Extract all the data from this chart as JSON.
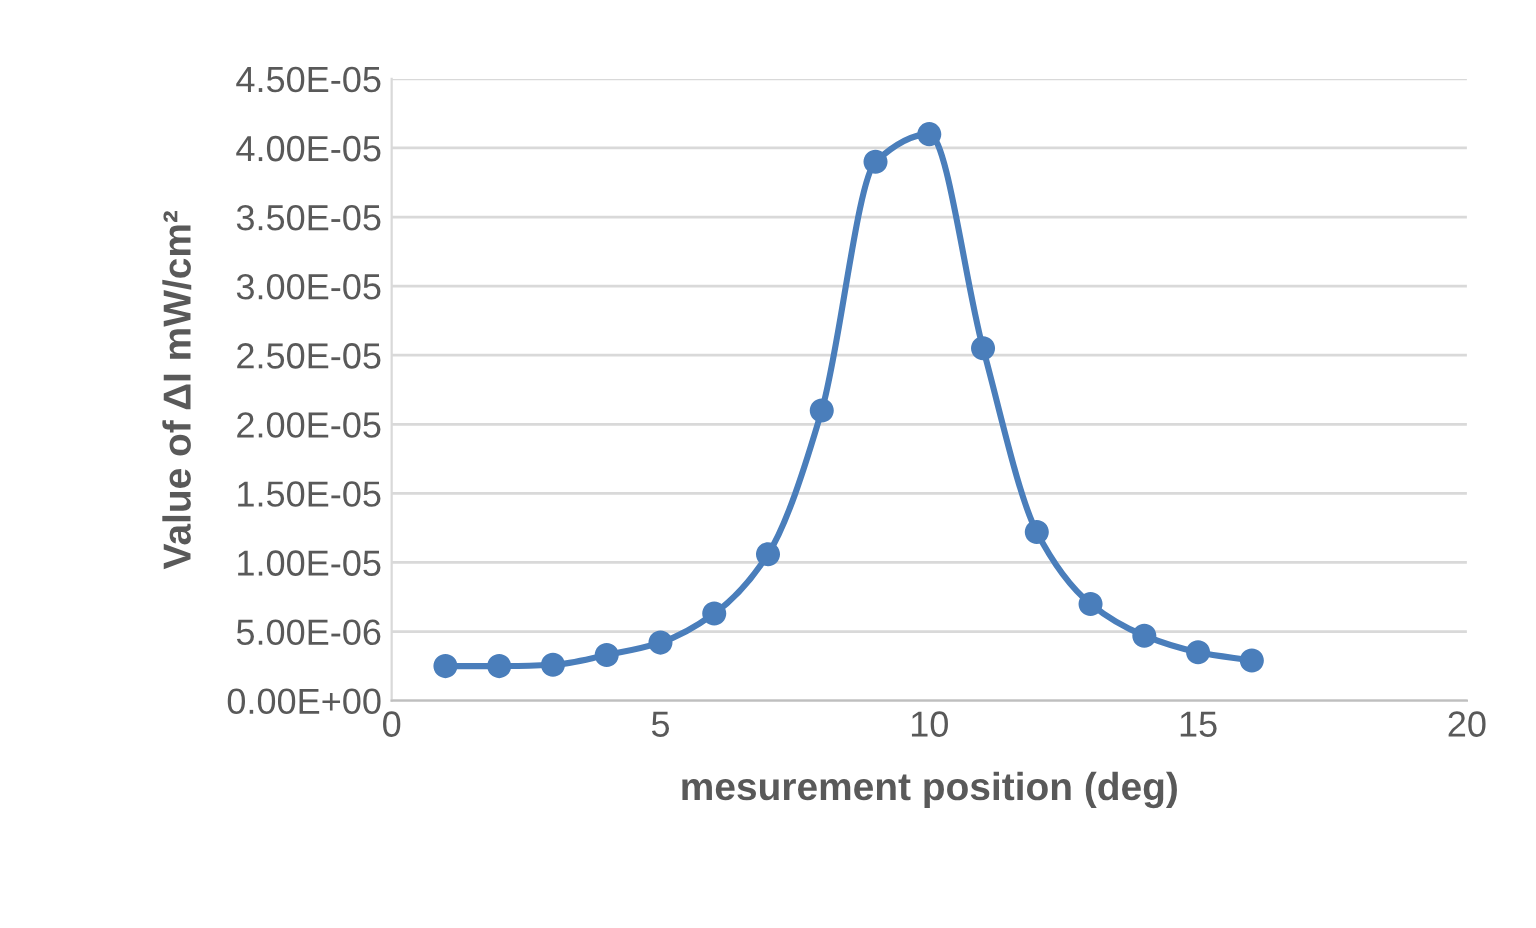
{
  "chart_data": {
    "type": "line",
    "xlabel": "mesurement position (deg)",
    "ylabel": "Value of ΔI mW/cm²",
    "x": [
      1,
      2,
      3,
      4,
      5,
      6,
      7,
      8,
      9,
      10,
      11,
      12,
      13,
      14,
      15,
      16
    ],
    "series": [
      {
        "color": "#4a7ebb",
        "values": [
          2.5e-06,
          2.5e-06,
          2.6e-06,
          3.3e-06,
          4.2e-06,
          6.3e-06,
          1.06e-05,
          2.1e-05,
          3.9e-05,
          4.1e-05,
          2.55e-05,
          1.22e-05,
          7e-06,
          4.7e-06,
          3.5e-06,
          2.9e-06
        ]
      }
    ],
    "xlim": [
      0,
      20
    ],
    "xticks": [
      0,
      5,
      10,
      15,
      20
    ],
    "ylim": [
      0,
      4.5e-05
    ],
    "yticks": [
      {
        "value": 0,
        "label": "0.00E+00"
      },
      {
        "value": 5e-06,
        "label": "5.00E-06"
      },
      {
        "value": 1e-05,
        "label": "1.00E-05"
      },
      {
        "value": 1.5e-05,
        "label": "1.50E-05"
      },
      {
        "value": 2e-05,
        "label": "2.00E-05"
      },
      {
        "value": 2.5e-05,
        "label": "2.50E-05"
      },
      {
        "value": 3e-05,
        "label": "3.00E-05"
      },
      {
        "value": 3.5e-05,
        "label": "3.50E-05"
      },
      {
        "value": 4e-05,
        "label": "4.00E-05"
      },
      {
        "value": 4.5e-05,
        "label": "4.50E-05"
      }
    ],
    "grid": "y",
    "marker": "circle",
    "line_style": "solid",
    "legend": false
  }
}
